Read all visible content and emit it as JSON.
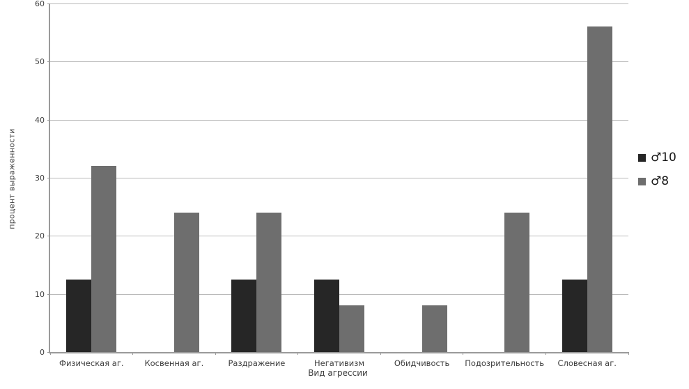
{
  "chart_data": {
    "type": "bar",
    "title": "",
    "xlabel": "Вид агрессии",
    "ylabel": "процент выраженности",
    "categories": [
      "Физическая аг.",
      "Косвенная аг.",
      "Раздражение",
      "Негативизм",
      "Обидчивость",
      "Подозрительность",
      "Словесная аг."
    ],
    "series": [
      {
        "name": "♂10",
        "color": "#262626",
        "values": [
          12.5,
          0,
          12.5,
          12.5,
          0,
          0,
          12.5
        ]
      },
      {
        "name": "♂8",
        "color": "#6e6e6e",
        "values": [
          32,
          24,
          24,
          8,
          8,
          24,
          56
        ]
      }
    ],
    "ylim": [
      0,
      60
    ],
    "yticks": [
      0,
      10,
      20,
      30,
      40,
      50,
      60
    ],
    "grid": "horizontal",
    "legend_position": "right",
    "colors": {
      "gridline": "#b9b9b9",
      "axis": "#9a9a9a",
      "text": "#3d3d3d"
    }
  }
}
